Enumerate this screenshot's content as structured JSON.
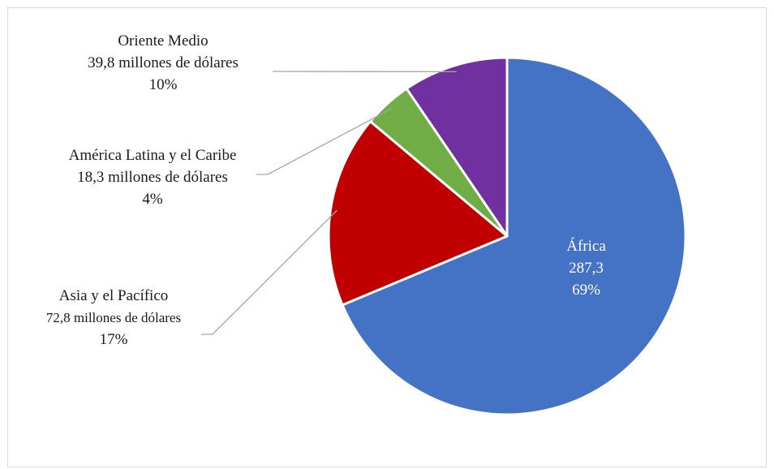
{
  "chart_data": {
    "type": "pie",
    "title": "",
    "slices": [
      {
        "name": "África",
        "value": 287.3,
        "value_label": "287,3",
        "percent_label": "69%",
        "color": "#4472C4"
      },
      {
        "name": "Asia y el Pacífico",
        "value": 72.8,
        "value_label": "72,8 millones de dólares",
        "percent_label": "17%",
        "color": "#C00000"
      },
      {
        "name": "América Latina y el Caribe",
        "value": 18.3,
        "value_label": "18,3 millones de dólares",
        "percent_label": "4%",
        "color": "#70AD47"
      },
      {
        "name": "Oriente Medio",
        "value": 39.8,
        "value_label": "39,8  millones de dólares",
        "percent_label": "10%",
        "color": "#7030A0"
      }
    ],
    "start_angle_deg": 0,
    "direction": "clockwise",
    "leader_color": "#a6a6a6",
    "border_color": "#ffffff"
  }
}
